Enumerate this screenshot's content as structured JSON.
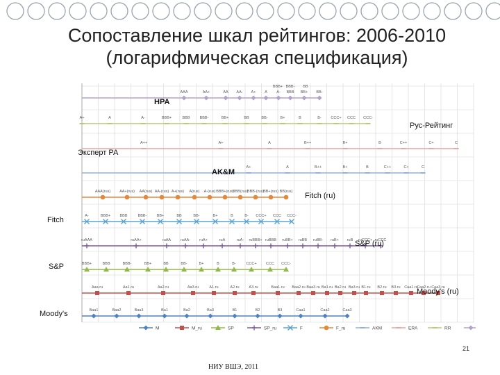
{
  "title_line1": "Сопоставление шкал рейтингов: 2006-2010",
  "title_line2": "(логарифмическая спецификация)",
  "labels": {
    "nra": "HPA",
    "rr": "Рус-Рейтинг",
    "ex": "Эксперт РА",
    "akm": "AK&M",
    "fitch_ru": "Fitch (ru)",
    "fitch": "Fitch",
    "sp_ru": "S&P (ru)",
    "sp": "S&P",
    "moodys_ru": "Moody's (ru)",
    "moodys": "Moody's"
  },
  "page_number": "21",
  "footer": "НИУ ВШЭ, 2011",
  "chart_data": {
    "type": "scatter",
    "legend": [
      "M",
      "M_ru",
      "SP",
      "SP_ru",
      "F",
      "F_ru",
      "AKM",
      "ERA",
      "RR",
      "NRA"
    ],
    "series": [
      {
        "name": "NRA",
        "color": "#b3a2c7",
        "grades_upper": [
          "BBB+",
          "BBB-",
          "BB"
        ],
        "grades": [
          "AAA",
          "AA+",
          "AA",
          "AA-",
          "A+",
          "A",
          "A-",
          "BBB",
          "BB+",
          "BB-"
        ]
      },
      {
        "name": "RR",
        "color": "#b5cc76",
        "grades": [
          "A+",
          "A",
          "A-",
          "BBB+",
          "BBB",
          "BBB-",
          "BB+",
          "BB",
          "BB-",
          "B+",
          "B",
          "B-",
          "CCC+",
          "CCC",
          "CCC-"
        ]
      },
      {
        "name": "ERA",
        "color": "#e6a6a4",
        "grades": [
          "A++",
          "A+",
          "A",
          "B++",
          "B+",
          "B",
          "C++",
          "C+",
          "C"
        ]
      },
      {
        "name": "AKM",
        "color": "#93b0d6",
        "grades": [
          "A+",
          "A",
          "B++",
          "B+",
          "B",
          "C++",
          "C+",
          "C"
        ]
      },
      {
        "name": "F_ru",
        "color": "#e5883a",
        "grades": [
          "AAA(rus)",
          "AA+(rus)",
          "AA(rus)",
          "AA-(rus)",
          "A+(rus)",
          "A(rus)",
          "A-(rus)",
          "BBB+(rus)",
          "BBB(rus)",
          "BBB-(rus)",
          "BB+(rus)",
          "BB(rus)"
        ]
      },
      {
        "name": "F",
        "color": "#5ba3d0",
        "grades": [
          "A-",
          "BBB+",
          "BBB",
          "BBB-",
          "BB+",
          "BB",
          "BB-",
          "B+",
          "B",
          "B-",
          "CCC+",
          "CCC",
          "CCC-"
        ]
      },
      {
        "name": "SP_ru",
        "color": "#7a5a9e",
        "grades": [
          "ruAAA",
          "ruAA+",
          "ruAA",
          "ruAA-",
          "ruA+",
          "ruA",
          "ruA-",
          "ruBBB+",
          "ruBBB",
          "ruBB+",
          "ruBB",
          "ruBB-",
          "ruB+",
          "ruB",
          "ruCCC+",
          "ruCCC"
        ]
      },
      {
        "name": "SP",
        "color": "#93b94a",
        "grades": [
          "BBB+",
          "BBB",
          "BBB-",
          "BB+",
          "BB",
          "BB-",
          "B+",
          "B",
          "B-",
          "CCC+",
          "CCC",
          "CCC-"
        ]
      },
      {
        "name": "M_ru",
        "color": "#c0504d",
        "grades": [
          "Aaa.ru",
          "Aa1.ru",
          "Aa2.ru",
          "Aa3.ru",
          "A1.ru",
          "A2.ru",
          "A3.ru",
          "Baa1.ru",
          "Baa2.ru",
          "Baa3.ru",
          "Ba1.ru",
          "Ba2.ru",
          "Ba3.ru",
          "B1.ru",
          "B2.ru",
          "B3.ru",
          "Caa1.ru",
          "Caa2.ru",
          "Caa3.ru"
        ]
      },
      {
        "name": "M",
        "color": "#4f81bd",
        "grades": [
          "Baa1",
          "Baa2",
          "Baa3",
          "Ba1",
          "Ba2",
          "Ba3",
          "B1",
          "B2",
          "B3",
          "Caa1",
          "Caa2",
          "Caa3"
        ]
      }
    ]
  }
}
